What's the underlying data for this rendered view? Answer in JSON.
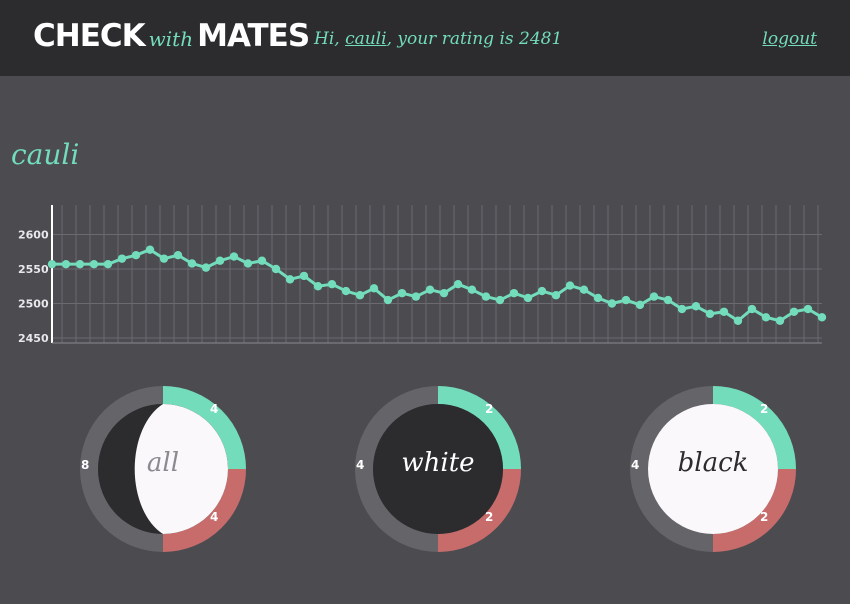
{
  "header": {
    "brand_check": "CHECK",
    "brand_with": "with",
    "brand_mates": "MATES",
    "greeting_prefix": "Hi, ",
    "username": "cauli",
    "greeting_suffix": ", your rating is 2481",
    "logout_label": "logout"
  },
  "profile": {
    "name": "cauli"
  },
  "colors": {
    "accent": "#72dcbb",
    "loss": "#c76b6b",
    "neutral": "#646469",
    "dark_disc": "#2c2c2f",
    "light_disc": "#fbf8fb"
  },
  "chart_data": {
    "type": "line",
    "ylim": [
      2450,
      2600
    ],
    "yticks": [
      "2600",
      "2550",
      "2500",
      "2450"
    ],
    "values": [
      2557,
      2557,
      2557,
      2557,
      2557,
      2565,
      2570,
      2578,
      2565,
      2570,
      2558,
      2552,
      2562,
      2568,
      2558,
      2562,
      2550,
      2535,
      2540,
      2525,
      2528,
      2518,
      2512,
      2522,
      2505,
      2515,
      2510,
      2520,
      2515,
      2528,
      2520,
      2510,
      2505,
      2515,
      2508,
      2518,
      2512,
      2526,
      2520,
      2508,
      2500,
      2505,
      2498,
      2510,
      2505,
      2492,
      2496,
      2485,
      2488,
      2475,
      2492,
      2480,
      2475,
      2488,
      2492,
      2480
    ]
  },
  "donuts": [
    {
      "label": "all",
      "total": "8",
      "wins": "4",
      "losses": "4",
      "win_frac": 0.25,
      "loss_frac": 0.25
    },
    {
      "label": "white",
      "total": "4",
      "wins": "2",
      "losses": "2",
      "win_frac": 0.25,
      "loss_frac": 0.25
    },
    {
      "label": "black",
      "total": "4",
      "wins": "2",
      "losses": "2",
      "win_frac": 0.25,
      "loss_frac": 0.25
    }
  ]
}
